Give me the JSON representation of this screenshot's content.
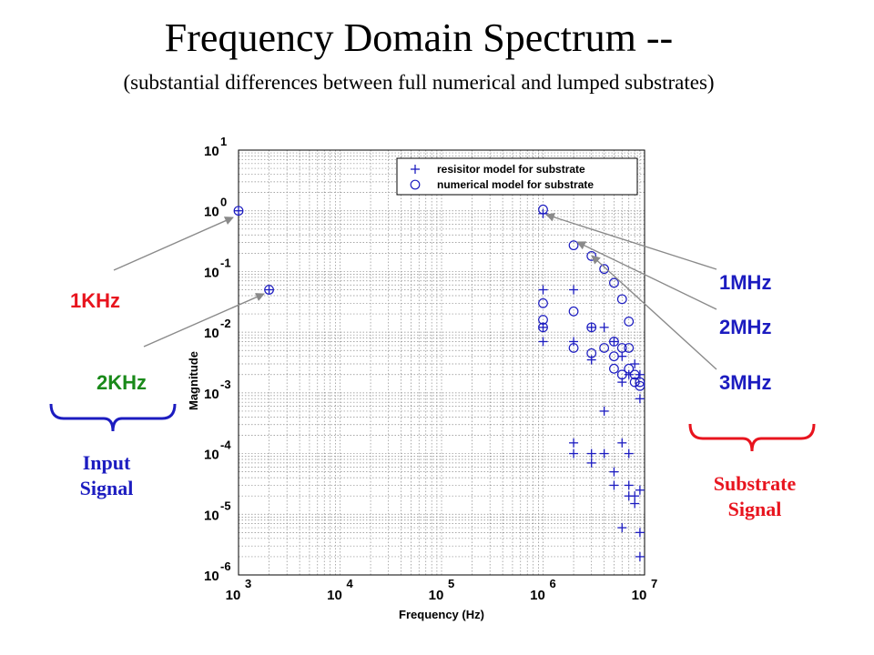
{
  "header": {
    "title": "Frequency Domain Spectrum --",
    "subtitle": "(substantial differences between full numerical and lumped substrates)"
  },
  "callouts": {
    "input_1": {
      "label": "1KHz",
      "color": "#e8141e"
    },
    "input_2": {
      "label": "2KHz",
      "color": "#1a8a1a"
    },
    "sub_1": {
      "label": "1MHz",
      "color": "#1c1cc0"
    },
    "sub_2": {
      "label": "2MHz",
      "color": "#1c1cc0"
    },
    "sub_3": {
      "label": "3MHz",
      "color": "#1c1cc0"
    }
  },
  "groups": {
    "input_line1": "Input",
    "input_line2": "Signal",
    "input_color": "#1c1cc0",
    "substrate_line1": "Substrate",
    "substrate_line2": "Signal",
    "substrate_color": "#e8141e"
  },
  "chart_data": {
    "type": "scatter",
    "xscale": "log",
    "yscale": "log",
    "xlim": [
      1000,
      10000000
    ],
    "ylim": [
      1e-06,
      10
    ],
    "xlabel": "Frequency (Hz)",
    "ylabel": "Magnitude",
    "grid": true,
    "legend_position": "top-right",
    "x_ticks": [
      3,
      4,
      5,
      6,
      7
    ],
    "y_ticks": [
      1,
      0,
      -1,
      -2,
      -3,
      -4,
      -5,
      -6
    ],
    "series_color": "#1c1cc0",
    "series": [
      {
        "name": "resisitor model for substrate",
        "marker": "plus",
        "points": [
          [
            1000,
            1.0
          ],
          [
            2000,
            0.05
          ],
          [
            1000000,
            0.9
          ],
          [
            1000000,
            0.05
          ],
          [
            1000000,
            0.012
          ],
          [
            1000000,
            0.007
          ],
          [
            2000000,
            0.05
          ],
          [
            2000000,
            0.007
          ],
          [
            2000000,
            0.00015
          ],
          [
            2000000,
            0.0001
          ],
          [
            3000000,
            0.0035
          ],
          [
            3000000,
            0.0001
          ],
          [
            3000000,
            7e-05
          ],
          [
            3000000,
            0.012
          ],
          [
            4000000,
            0.012
          ],
          [
            4000000,
            0.0005
          ],
          [
            4000000,
            0.0001
          ],
          [
            5000000,
            0.007
          ],
          [
            5000000,
            5e-05
          ],
          [
            5000000,
            3e-05
          ],
          [
            6000000,
            0.004
          ],
          [
            6000000,
            0.0015
          ],
          [
            6000000,
            0.00015
          ],
          [
            6000000,
            6e-06
          ],
          [
            7000000,
            0.002
          ],
          [
            7000000,
            0.0001
          ],
          [
            7000000,
            3e-05
          ],
          [
            7000000,
            2e-05
          ],
          [
            8000000,
            0.003
          ],
          [
            8000000,
            2e-05
          ],
          [
            8000000,
            1.5e-05
          ],
          [
            9000000,
            0.002
          ],
          [
            9000000,
            0.0008
          ],
          [
            9000000,
            2.5e-05
          ],
          [
            9000000,
            5e-06
          ],
          [
            9000000,
            2e-06
          ]
        ]
      },
      {
        "name": "numerical model for substrate",
        "marker": "circle",
        "points": [
          [
            1000,
            1.0
          ],
          [
            2000,
            0.05
          ],
          [
            1000000,
            1.05
          ],
          [
            1000000,
            0.03
          ],
          [
            1000000,
            0.016
          ],
          [
            1000000,
            0.012
          ],
          [
            2000000,
            0.27
          ],
          [
            2000000,
            0.022
          ],
          [
            2000000,
            0.0055
          ],
          [
            3000000,
            0.18
          ],
          [
            3000000,
            0.012
          ],
          [
            3000000,
            0.0045
          ],
          [
            4000000,
            0.11
          ],
          [
            4000000,
            0.0055
          ],
          [
            5000000,
            0.065
          ],
          [
            5000000,
            0.007
          ],
          [
            5000000,
            0.004
          ],
          [
            5000000,
            0.0025
          ],
          [
            6000000,
            0.035
          ],
          [
            6000000,
            0.0055
          ],
          [
            6000000,
            0.002
          ],
          [
            7000000,
            0.015
          ],
          [
            7000000,
            0.0055
          ],
          [
            7000000,
            0.0025
          ],
          [
            8000000,
            0.002
          ],
          [
            8000000,
            0.0015
          ],
          [
            9000000,
            0.0015
          ],
          [
            9000000,
            0.0013
          ]
        ]
      }
    ]
  }
}
